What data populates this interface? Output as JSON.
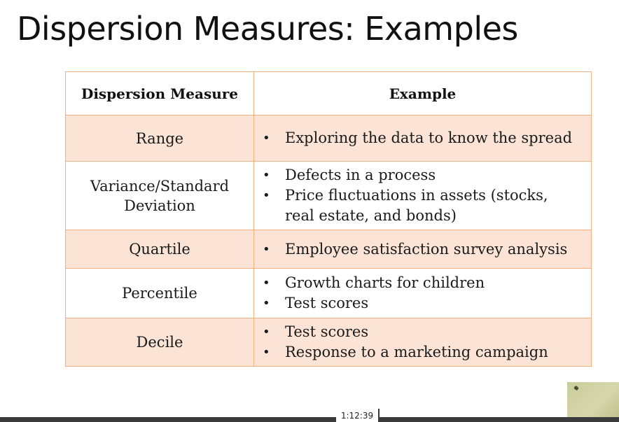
{
  "slide": {
    "title": "Dispersion Measures: Examples"
  },
  "table": {
    "headers": [
      "Dispersion Measure",
      "Example"
    ],
    "rows": [
      {
        "measure": "Range",
        "examples": [
          "Exploring the data to know the spread"
        ]
      },
      {
        "measure": "Variance/Standard Deviation",
        "examples": [
          "Defects in a process",
          "Price fluctuations in assets (stocks, real estate, and bonds)"
        ]
      },
      {
        "measure": "Quartile",
        "examples": [
          "Employee satisfaction survey analysis"
        ]
      },
      {
        "measure": "Percentile",
        "examples": [
          "Growth charts for children",
          "Test scores"
        ]
      },
      {
        "measure": "Decile",
        "examples": [
          "Test scores",
          "Response to a marketing campaign"
        ]
      }
    ],
    "colors": {
      "border": "#f5b07c",
      "band": "#fbe3d5"
    }
  },
  "player": {
    "timestamp": "1:12:39"
  }
}
